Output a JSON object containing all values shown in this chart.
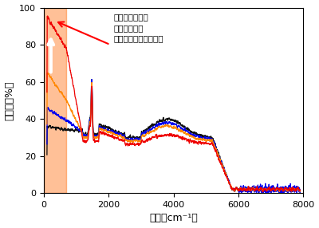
{
  "xlabel": "波数（cm⁻¹）",
  "ylabel": "反射率（%）",
  "xlim": [
    0,
    8000
  ],
  "ylim": [
    0,
    100
  ],
  "xticks": [
    0,
    2000,
    4000,
    6000,
    8000
  ],
  "yticks": [
    0,
    20,
    40,
    60,
    80,
    100
  ],
  "annotation_text": "遠赤外光領域の\n反射率の増加\n（絶縁体から金属へ）",
  "shade_color": "#FF6600",
  "shade_alpha": 0.3,
  "shade_xmin": 0,
  "shade_xmax": 700,
  "colors": {
    "black": "#111111",
    "blue": "#0000EE",
    "orange": "#FF8800",
    "red": "#EE0000"
  },
  "background_color": "#ffffff",
  "figsize": [
    4.0,
    2.86
  ],
  "dpi": 100
}
